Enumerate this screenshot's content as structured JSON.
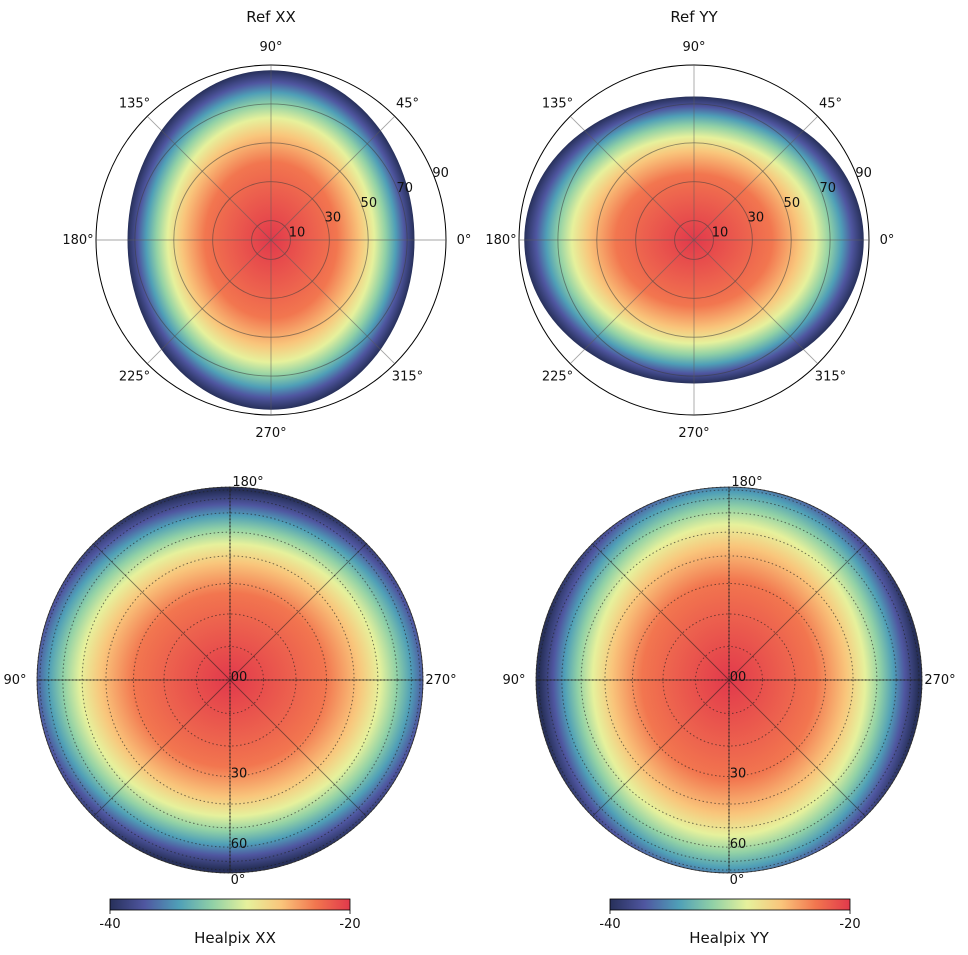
{
  "chart_data": [
    {
      "type": "heatmap",
      "projection": "polar",
      "title": "Ref XX",
      "angle_ticks": [
        "0°",
        "45°",
        "90°",
        "135°",
        "180°",
        "225°",
        "270°",
        "315°"
      ],
      "angle_tick_values": [
        0,
        45,
        90,
        135,
        180,
        225,
        270,
        315
      ],
      "radial_ticks": [
        "10",
        "30",
        "50",
        "70",
        "90"
      ],
      "radial_tick_values": [
        10,
        30,
        50,
        70,
        90
      ],
      "rlim": [
        0,
        90
      ],
      "grid": true,
      "beam": "XX",
      "colormap": [
        "#27305a",
        "#4f56a0",
        "#4f9fb7",
        "#91d1a6",
        "#e6f19c",
        "#f9c57b",
        "#f2764f",
        "#e2394b"
      ],
      "color_range": [
        -40,
        -20
      ]
    },
    {
      "type": "heatmap",
      "projection": "polar",
      "title": "Ref YY",
      "angle_ticks": [
        "0°",
        "45°",
        "90°",
        "135°",
        "180°",
        "225°",
        "270°",
        "315°"
      ],
      "angle_tick_values": [
        0,
        45,
        90,
        135,
        180,
        225,
        270,
        315
      ],
      "radial_ticks": [
        "10",
        "30",
        "50",
        "70",
        "90"
      ],
      "radial_tick_values": [
        10,
        30,
        50,
        70,
        90
      ],
      "rlim": [
        0,
        90
      ],
      "grid": true,
      "beam": "YY",
      "colormap": [
        "#27305a",
        "#4f56a0",
        "#4f9fb7",
        "#91d1a6",
        "#e6f19c",
        "#f9c57b",
        "#f2764f",
        "#e2394b"
      ],
      "color_range": [
        -40,
        -20
      ]
    },
    {
      "type": "heatmap",
      "projection": "orthographic",
      "colorbar_label": "Healpix XX",
      "colorbar_ticks": [
        "-40",
        "-20"
      ],
      "colorbar_tick_values": [
        -40,
        -20
      ],
      "meridian_labels": [
        "180°",
        "90°",
        "270°",
        "0°"
      ],
      "meridian_label_values": [
        180,
        90,
        270,
        0
      ],
      "parallel_labels": [
        "00",
        "30",
        "60"
      ],
      "parallel_label_values": [
        0,
        30,
        60
      ],
      "grid": true,
      "beam": "XX",
      "colormap": [
        "#27305a",
        "#4f56a0",
        "#4f9fb7",
        "#91d1a6",
        "#e6f19c",
        "#f9c57b",
        "#f2764f",
        "#e2394b"
      ],
      "color_range": [
        -40,
        -20
      ]
    },
    {
      "type": "heatmap",
      "projection": "orthographic",
      "colorbar_label": "Healpix YY",
      "colorbar_ticks": [
        "-40",
        "-20"
      ],
      "colorbar_tick_values": [
        -40,
        -20
      ],
      "meridian_labels": [
        "180°",
        "90°",
        "270°",
        "0°"
      ],
      "meridian_label_values": [
        180,
        90,
        270,
        0
      ],
      "parallel_labels": [
        "00",
        "30",
        "60"
      ],
      "parallel_label_values": [
        0,
        30,
        60
      ],
      "grid": true,
      "beam": "YY",
      "colormap": [
        "#27305a",
        "#4f56a0",
        "#4f9fb7",
        "#91d1a6",
        "#e6f19c",
        "#f9c57b",
        "#f2764f",
        "#e2394b"
      ],
      "color_range": [
        -40,
        -20
      ]
    }
  ]
}
